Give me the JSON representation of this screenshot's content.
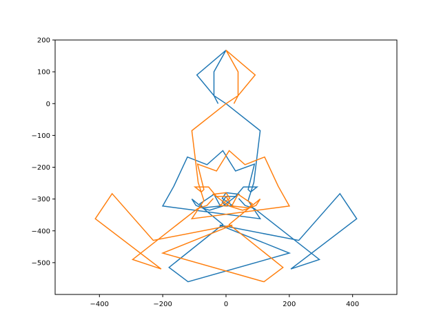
{
  "chart_data": {
    "type": "line",
    "title": "",
    "xlabel": "",
    "ylabel": "",
    "xlim": [
      -540,
      540
    ],
    "ylim": [
      -600,
      200
    ],
    "x_ticks": [
      -400,
      -200,
      0,
      200,
      400
    ],
    "x_tick_labels": [
      "−400",
      "−200",
      "0",
      "200",
      "400"
    ],
    "y_ticks": [
      200,
      100,
      0,
      -100,
      -200,
      -300,
      -400,
      -500
    ],
    "y_tick_labels": [
      "200",
      "100",
      "0",
      "−100",
      "−200",
      "−300",
      "−400",
      "−500"
    ],
    "grid": false,
    "series": [
      {
        "color": "#1f77b4",
        "points": [
          [
            -25,
            0
          ],
          [
            -38,
            25
          ],
          [
            -38,
            100
          ],
          [
            0,
            168
          ],
          [
            -92,
            90
          ],
          [
            -38,
            25
          ],
          [
            0,
            0
          ],
          [
            108,
            -85
          ],
          [
            88,
            -248
          ],
          [
            70,
            -305
          ],
          [
            108,
            -362
          ],
          [
            -200,
            -322
          ],
          [
            -165,
            -260
          ],
          [
            -122,
            -168
          ],
          [
            -60,
            -192
          ],
          [
            -10,
            -148
          ],
          [
            30,
            -212
          ],
          [
            90,
            -190
          ],
          [
            70,
            -270
          ],
          [
            78,
            -278
          ],
          [
            98,
            -262
          ],
          [
            55,
            -262
          ],
          [
            30,
            -292
          ],
          [
            0,
            -292
          ],
          [
            -12,
            -310
          ],
          [
            0,
            -322
          ],
          [
            20,
            -320
          ],
          [
            -12,
            -298
          ],
          [
            0,
            -280
          ],
          [
            40,
            -285
          ],
          [
            -10,
            -322
          ],
          [
            -52,
            -335
          ],
          [
            -70,
            -330
          ],
          [
            -83,
            -315
          ],
          [
            -60,
            -300
          ],
          [
            -38,
            -285
          ],
          [
            -18,
            -322
          ],
          [
            -75,
            -328
          ],
          [
            -95,
            -320
          ],
          [
            -108,
            -300
          ],
          [
            -10,
            -380
          ],
          [
            -180,
            -515
          ],
          [
            -120,
            -560
          ],
          [
            200,
            -470
          ],
          [
            -20,
            -382
          ],
          [
            230,
            -430
          ],
          [
            360,
            -283
          ],
          [
            413,
            -362
          ],
          [
            205,
            -520
          ],
          [
            295,
            -490
          ],
          [
            90,
            -330
          ],
          [
            60,
            -320
          ],
          [
            40,
            -298
          ]
        ]
      },
      {
        "color": "#ff7f0e",
        "points": [
          [
            25,
            0
          ],
          [
            38,
            25
          ],
          [
            38,
            100
          ],
          [
            0,
            168
          ],
          [
            92,
            90
          ],
          [
            38,
            25
          ],
          [
            0,
            0
          ],
          [
            -108,
            -85
          ],
          [
            -88,
            -248
          ],
          [
            -70,
            -305
          ],
          [
            -108,
            -362
          ],
          [
            200,
            -322
          ],
          [
            165,
            -260
          ],
          [
            122,
            -168
          ],
          [
            60,
            -192
          ],
          [
            10,
            -148
          ],
          [
            -30,
            -212
          ],
          [
            -90,
            -190
          ],
          [
            -70,
            -270
          ],
          [
            -78,
            -278
          ],
          [
            -98,
            -262
          ],
          [
            -55,
            -262
          ],
          [
            -30,
            -292
          ],
          [
            0,
            -292
          ],
          [
            12,
            -310
          ],
          [
            0,
            -322
          ],
          [
            -20,
            -320
          ],
          [
            12,
            -298
          ],
          [
            0,
            -280
          ],
          [
            -40,
            -285
          ],
          [
            10,
            -322
          ],
          [
            52,
            -335
          ],
          [
            70,
            -330
          ],
          [
            83,
            -315
          ],
          [
            60,
            -300
          ],
          [
            38,
            -285
          ],
          [
            18,
            -322
          ],
          [
            75,
            -328
          ],
          [
            95,
            -320
          ],
          [
            108,
            -300
          ],
          [
            10,
            -380
          ],
          [
            180,
            -515
          ],
          [
            120,
            -560
          ],
          [
            -200,
            -470
          ],
          [
            20,
            -382
          ],
          [
            -230,
            -430
          ],
          [
            -360,
            -283
          ],
          [
            -413,
            -362
          ],
          [
            -205,
            -520
          ],
          [
            -295,
            -490
          ],
          [
            -90,
            -330
          ],
          [
            -60,
            -320
          ],
          [
            -40,
            -298
          ]
        ]
      }
    ]
  }
}
